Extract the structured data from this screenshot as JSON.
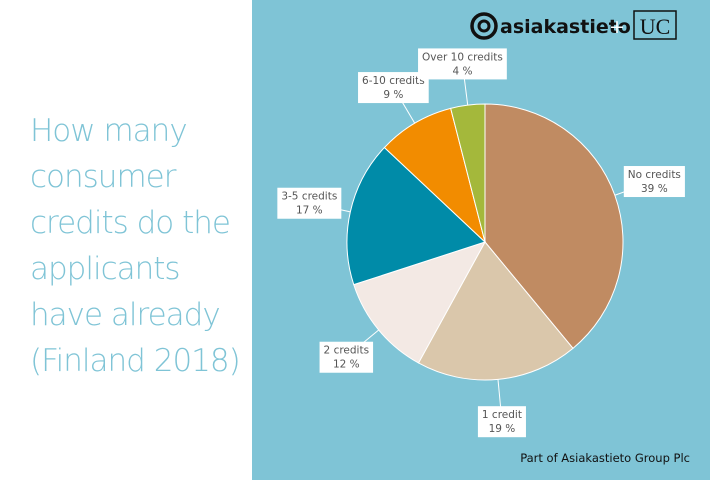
{
  "chart_data": {
    "type": "pie",
    "title": "How many consumer credits do the applicants have already (Finland 2018)",
    "categories": [
      "No credits",
      "1 credit",
      "2 credits",
      "3-5 credits",
      "6-10 credits",
      "Over 10 credits"
    ],
    "values": [
      39,
      19,
      12,
      17,
      9,
      4
    ],
    "value_labels": [
      "39 %",
      "19 %",
      "12 %",
      "17 %",
      "9 %",
      "4 %"
    ],
    "colors": [
      "#c08b62",
      "#dac7ab",
      "#f3e9e4",
      "#008ba8",
      "#f28c00",
      "#a4b83b"
    ]
  },
  "logo": {
    "brand": "asiakastieto",
    "plus": "+",
    "partner": "UC"
  },
  "footer": "Part of Asiakastieto Group Plc"
}
